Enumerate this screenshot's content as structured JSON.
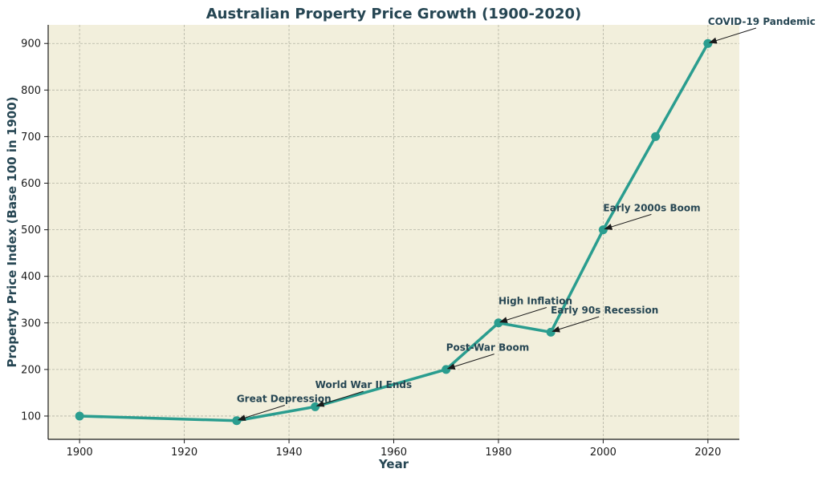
{
  "chart_data": {
    "type": "line",
    "title": "Australian Property Price Growth (1900-2020)",
    "xlabel": "Year",
    "ylabel": "Property Price Index (Base 100 in 1900)",
    "xlim": [
      1894,
      2026
    ],
    "ylim": [
      50,
      940
    ],
    "xticks": [
      1900,
      1920,
      1940,
      1960,
      1980,
      2000,
      2020
    ],
    "yticks": [
      100,
      200,
      300,
      400,
      500,
      600,
      700,
      800,
      900
    ],
    "grid": true,
    "series": [
      {
        "name": "Property Price Index",
        "x": [
          1900,
          1930,
          1945,
          1970,
          1980,
          1990,
          2000,
          2010,
          2020
        ],
        "y": [
          100,
          90,
          120,
          200,
          300,
          280,
          500,
          700,
          900
        ]
      }
    ],
    "annotations": [
      {
        "text": "Great Depression",
        "x": 1930,
        "y": 90,
        "text_x": 1930,
        "text_y": 130
      },
      {
        "text": "World War II Ends",
        "x": 1945,
        "y": 120,
        "text_x": 1945,
        "text_y": 160
      },
      {
        "text": "Post-War Boom",
        "x": 1970,
        "y": 200,
        "text_x": 1970,
        "text_y": 240
      },
      {
        "text": "High Inflation",
        "x": 1980,
        "y": 300,
        "text_x": 1980,
        "text_y": 340
      },
      {
        "text": "Early 90s Recession",
        "x": 1990,
        "y": 280,
        "text_x": 1990,
        "text_y": 320
      },
      {
        "text": "Early 2000s Boom",
        "x": 2000,
        "y": 500,
        "text_x": 2000,
        "text_y": 540
      },
      {
        "text": "COVID-19 Pandemic",
        "x": 2020,
        "y": 900,
        "text_x": 2020,
        "text_y": 940
      }
    ],
    "colors": {
      "line": "#2a9d8f",
      "background": "#f2efdc",
      "text": "#264653",
      "axis": "#1a1a1a",
      "arrow": "#1a1a1a"
    }
  }
}
